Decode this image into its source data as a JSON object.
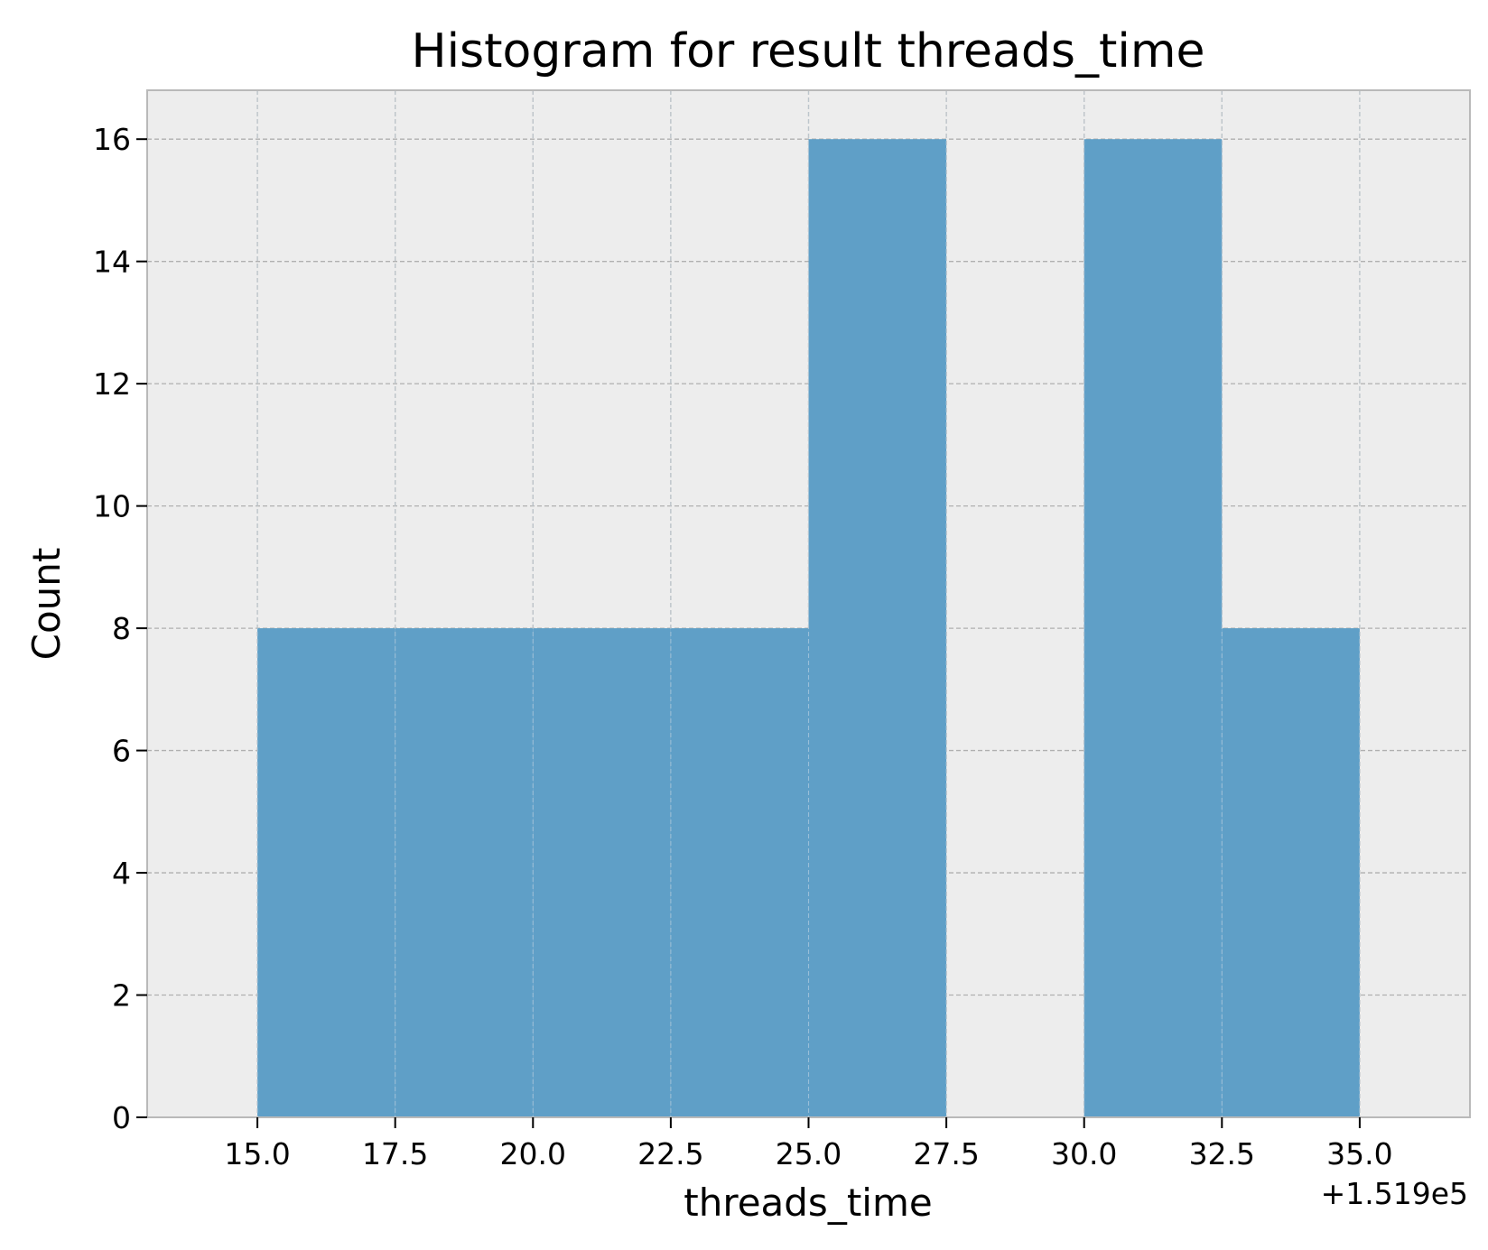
{
  "chart_data": {
    "type": "bar",
    "subtype": "histogram",
    "title": "Histogram for result threads_time",
    "xlabel": "threads_time",
    "ylabel": "Count",
    "x_offset_label": "+1.519e5",
    "x_offset": 151900,
    "bin_edges": [
      15.0,
      17.5,
      20.0,
      22.5,
      25.0,
      27.5,
      30.0,
      32.5,
      35.0
    ],
    "values": [
      8,
      8,
      8,
      8,
      16,
      0,
      16,
      8
    ],
    "xlim": [
      13.0,
      37.0
    ],
    "ylim": [
      0,
      16.8
    ],
    "x_ticks": [
      15.0,
      17.5,
      20.0,
      22.5,
      25.0,
      27.5,
      30.0,
      32.5,
      35.0
    ],
    "x_tick_labels": [
      "15.0",
      "17.5",
      "20.0",
      "22.5",
      "25.0",
      "27.5",
      "30.0",
      "32.5",
      "35.0"
    ],
    "y_ticks": [
      0,
      2,
      4,
      6,
      8,
      10,
      12,
      14,
      16
    ],
    "y_tick_labels": [
      "0",
      "2",
      "4",
      "6",
      "8",
      "10",
      "12",
      "14",
      "16"
    ],
    "grid": true,
    "grid_style": "dashed",
    "bar_color": "#5f9fc7",
    "plot_background": "#ededed",
    "grid_color": "#b0b0b0",
    "axes_edge_color": "#b9b9b9",
    "legend": false
  }
}
